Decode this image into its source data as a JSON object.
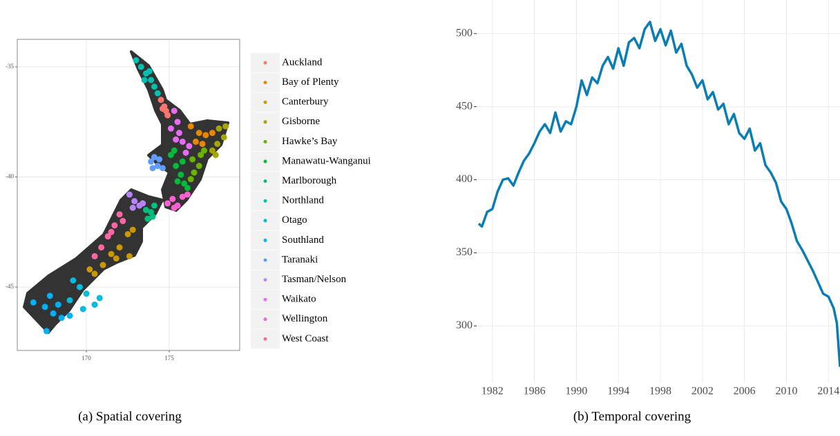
{
  "chart_data": [
    {
      "type": "scatter",
      "caption": "(a) Spatial covering",
      "xlim": [
        165.83,
        179.25
      ],
      "ylim": [
        -47.88,
        -33.75
      ],
      "xticks": [
        170,
        175
      ],
      "yticks": [
        -45,
        -40,
        -35
      ],
      "grid": true,
      "series": [
        {
          "name": "Auckland",
          "color": "#F8766D",
          "x": [
            174.5,
            174.7,
            174.8,
            174.9,
            174.6
          ],
          "y": [
            -36.5,
            -36.8,
            -37.0,
            -37.2,
            -36.9
          ]
        },
        {
          "name": "Bay of Plenty",
          "color": "#E58700",
          "x": [
            176.3,
            176.8,
            177.2,
            177.6,
            176.6,
            177.0
          ],
          "y": [
            -37.7,
            -38.0,
            -38.1,
            -38.0,
            -38.4,
            -38.5
          ]
        },
        {
          "name": "Canterbury",
          "color": "#C99800",
          "x": [
            172.5,
            172.0,
            171.5,
            171.0,
            170.5,
            171.8,
            172.8,
            170.2,
            172.6
          ],
          "y": [
            -42.6,
            -43.2,
            -43.5,
            -44.0,
            -44.4,
            -43.7,
            -42.4,
            -44.2,
            -43.6
          ]
        },
        {
          "name": "Gisborne",
          "color": "#A3A500",
          "x": [
            178.0,
            178.3,
            177.9,
            177.6,
            178.4,
            177.8
          ],
          "y": [
            -37.8,
            -38.2,
            -38.5,
            -38.8,
            -37.7,
            -39.0
          ]
        },
        {
          "name": "Hawke’s Bay",
          "color": "#6BB100",
          "x": [
            176.4,
            176.8,
            176.9,
            177.1,
            176.5,
            176.3
          ],
          "y": [
            -39.2,
            -39.5,
            -39.0,
            -38.8,
            -39.8,
            -40.1
          ]
        },
        {
          "name": "Manawatu-Wanganui",
          "color": "#00BA38",
          "x": [
            175.1,
            175.4,
            175.7,
            175.9,
            175.5,
            175.3,
            176.1,
            175.8
          ],
          "y": [
            -39.0,
            -39.5,
            -39.9,
            -40.3,
            -40.2,
            -38.8,
            -40.5,
            -39.3
          ]
        },
        {
          "name": "Marlborough",
          "color": "#00BF7D",
          "x": [
            173.6,
            173.9,
            174.1,
            173.7,
            174.0
          ],
          "y": [
            -41.5,
            -41.6,
            -41.3,
            -41.9,
            -41.8
          ]
        },
        {
          "name": "Northland",
          "color": "#00C0AF",
          "x": [
            173.0,
            173.3,
            173.6,
            173.9,
            174.1,
            174.3,
            173.5,
            173.8
          ],
          "y": [
            -34.7,
            -35.0,
            -35.3,
            -35.6,
            -35.9,
            -36.2,
            -35.6,
            -35.2
          ]
        },
        {
          "name": "Otago",
          "color": "#00BCD8",
          "x": [
            170.5,
            170.0,
            169.6,
            169.2,
            169.8,
            170.8,
            169.0
          ],
          "y": [
            -45.8,
            -45.3,
            -45.0,
            -44.7,
            -46.0,
            -45.5,
            -45.6
          ]
        },
        {
          "name": "Southland",
          "color": "#00B0F6",
          "x": [
            166.8,
            167.5,
            168.0,
            168.5,
            169.0,
            167.8,
            168.3,
            167.6
          ],
          "y": [
            -45.7,
            -45.9,
            -46.2,
            -46.4,
            -46.3,
            -45.4,
            -45.8,
            -47.0
          ]
        },
        {
          "name": "Taranaki",
          "color": "#619CFF",
          "x": [
            173.9,
            174.1,
            174.3,
            174.6,
            174.0,
            174.4
          ],
          "y": [
            -39.3,
            -39.1,
            -39.5,
            -39.6,
            -39.6,
            -39.2
          ]
        },
        {
          "name": "Tasman/Nelson",
          "color": "#B983FF",
          "x": [
            172.6,
            172.9,
            173.2,
            172.8,
            173.4
          ],
          "y": [
            -40.8,
            -41.1,
            -41.3,
            -41.4,
            -41.2
          ]
        },
        {
          "name": "Waikato",
          "color": "#E76BF3",
          "x": [
            175.3,
            175.5,
            175.6,
            175.8,
            176.0,
            175.4,
            176.2,
            175.1
          ],
          "y": [
            -37.0,
            -37.5,
            -38.0,
            -38.4,
            -38.9,
            -38.3,
            -38.6,
            -37.8
          ]
        },
        {
          "name": "Wellington",
          "color": "#FD61D1",
          "x": [
            174.9,
            175.2,
            175.5,
            175.8,
            175.3,
            176.1
          ],
          "y": [
            -41.2,
            -41.0,
            -41.3,
            -40.9,
            -41.4,
            -40.8
          ]
        },
        {
          "name": "West Coast",
          "color": "#FF67A4",
          "x": [
            172.0,
            171.7,
            171.3,
            170.9,
            170.5,
            171.5,
            172.2
          ],
          "y": [
            -41.7,
            -42.2,
            -42.7,
            -43.2,
            -43.6,
            -42.5,
            -42.0
          ]
        }
      ]
    },
    {
      "type": "line",
      "caption": "(b) Temporal covering",
      "color": "#0A7DB5",
      "xlim": [
        1980.5,
        2015.1
      ],
      "ylim": [
        261,
        523
      ],
      "xticks": [
        1982,
        1986,
        1990,
        1994,
        1998,
        2002,
        2006,
        2010,
        2014
      ],
      "yticks": [
        300,
        350,
        400,
        450,
        500
      ],
      "grid": true,
      "x": [
        1980.7,
        1981,
        1981.5,
        1982,
        1982.5,
        1983,
        1983.5,
        1984,
        1984.5,
        1985,
        1985.5,
        1986,
        1986.5,
        1987,
        1987.5,
        1988,
        1988.5,
        1989,
        1989.5,
        1990,
        1990.5,
        1991,
        1991.5,
        1992,
        1992.5,
        1993,
        1993.5,
        1994,
        1994.5,
        1995,
        1995.5,
        1996,
        1996.5,
        1997,
        1997.5,
        1998,
        1998.5,
        1999,
        1999.5,
        2000,
        2000.5,
        2001,
        2001.5,
        2002,
        2002.5,
        2003,
        2003.5,
        2004,
        2004.5,
        2005,
        2005.5,
        2006,
        2006.5,
        2007,
        2007.5,
        2008,
        2008.5,
        2009,
        2009.5,
        2010,
        2010.5,
        2011,
        2011.5,
        2012,
        2012.5,
        2013,
        2013.5,
        2014,
        2014.5,
        2014.8,
        2015.1
      ],
      "values": [
        370,
        368,
        378,
        380,
        392,
        400,
        401,
        396,
        405,
        413,
        418,
        425,
        433,
        438,
        432,
        446,
        433,
        440,
        438,
        450,
        468,
        458,
        470,
        466,
        478,
        484,
        476,
        490,
        478,
        494,
        497,
        490,
        503,
        508,
        495,
        503,
        492,
        502,
        487,
        493,
        478,
        472,
        463,
        468,
        455,
        460,
        448,
        452,
        438,
        445,
        432,
        428,
        435,
        420,
        425,
        410,
        405,
        398,
        385,
        380,
        370,
        358,
        352,
        345,
        338,
        330,
        322,
        320,
        312,
        302,
        272
      ]
    }
  ]
}
